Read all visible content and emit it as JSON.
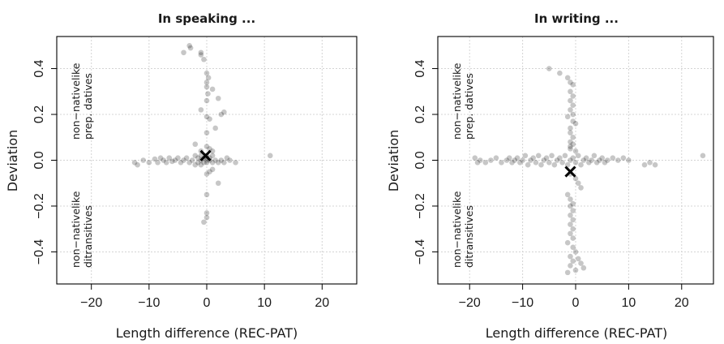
{
  "chart_data": [
    {
      "type": "scatter",
      "title": "In speaking ...",
      "xlabel": "Length difference (REC-PAT)",
      "ylabel": "Deviation",
      "xlim": [
        -26,
        26
      ],
      "ylim": [
        -0.54,
        0.54
      ],
      "xticks": [
        -20,
        -10,
        0,
        10,
        20
      ],
      "yticks": [
        -0.4,
        -0.2,
        0.0,
        0.2,
        0.4
      ],
      "x_tick_labels": [
        "−20",
        "−10",
        "0",
        "10",
        "20"
      ],
      "y_tick_labels": [
        "−0.4",
        "−0.2",
        "0.0",
        "0.2",
        "0.4"
      ],
      "grid": true,
      "annotations": {
        "upper": [
          "non−nativelike",
          "prep. datives"
        ],
        "lower": [
          "non−nativelike",
          "ditransitives"
        ]
      },
      "mean_marker": {
        "x": -0.2,
        "y": 0.02
      },
      "points": [
        [
          -12.5,
          -0.01
        ],
        [
          -12,
          -0.02
        ],
        [
          -11,
          0.0
        ],
        [
          -10,
          -0.01
        ],
        [
          -9,
          0.005
        ],
        [
          -8.5,
          -0.01
        ],
        [
          -8,
          0.01
        ],
        [
          -7.5,
          0.0
        ],
        [
          -7,
          -0.01
        ],
        [
          -6.5,
          0.01
        ],
        [
          -6,
          -0.005
        ],
        [
          -5.5,
          0.0
        ],
        [
          -5,
          0.01
        ],
        [
          -4.5,
          -0.01
        ],
        [
          -4,
          0.0
        ],
        [
          -3.5,
          0.01
        ],
        [
          -3,
          -0.01
        ],
        [
          -2.5,
          0.0
        ],
        [
          -2,
          0.02
        ],
        [
          -2,
          -0.02
        ],
        [
          -1.5,
          0.01
        ],
        [
          -1.5,
          -0.01
        ],
        [
          -1,
          0.0
        ],
        [
          -1,
          0.02
        ],
        [
          -1,
          -0.02
        ],
        [
          -0.5,
          0.01
        ],
        [
          -0.5,
          -0.01
        ],
        [
          0,
          0.0
        ],
        [
          0,
          0.01
        ],
        [
          0,
          -0.01
        ],
        [
          0,
          0.02
        ],
        [
          0.5,
          0.0
        ],
        [
          0.5,
          0.01
        ],
        [
          1,
          -0.01
        ],
        [
          1,
          0.02
        ],
        [
          1.5,
          0.0
        ],
        [
          2,
          -0.01
        ],
        [
          2.5,
          0.0
        ],
        [
          3,
          -0.01
        ],
        [
          3.5,
          0.01
        ],
        [
          4,
          0.0
        ],
        [
          5,
          -0.01
        ],
        [
          11,
          0.02
        ],
        [
          -3,
          0.5
        ],
        [
          -2.8,
          0.49
        ],
        [
          -4,
          0.47
        ],
        [
          -1,
          0.47
        ],
        [
          -1,
          0.46
        ],
        [
          -0.5,
          0.44
        ],
        [
          0,
          0.38
        ],
        [
          0.3,
          0.36
        ],
        [
          0,
          0.34
        ],
        [
          0,
          0.32
        ],
        [
          1,
          0.31
        ],
        [
          0.2,
          0.29
        ],
        [
          2,
          0.27
        ],
        [
          0,
          0.26
        ],
        [
          -1,
          0.22
        ],
        [
          3,
          0.21
        ],
        [
          2.5,
          0.2
        ],
        [
          0,
          0.19
        ],
        [
          0.5,
          0.18
        ],
        [
          1.5,
          0.14
        ],
        [
          0,
          0.12
        ],
        [
          -2,
          0.07
        ],
        [
          0,
          0.06
        ],
        [
          0.5,
          0.05
        ],
        [
          -1,
          0.04
        ],
        [
          1,
          0.04
        ],
        [
          0,
          -0.06
        ],
        [
          0.5,
          -0.05
        ],
        [
          1,
          -0.04
        ],
        [
          2,
          -0.1
        ],
        [
          0,
          -0.15
        ],
        [
          0,
          -0.23
        ],
        [
          0,
          -0.25
        ],
        [
          -0.5,
          -0.27
        ]
      ]
    },
    {
      "type": "scatter",
      "title": "In writing ...",
      "xlabel": "Length difference (REC-PAT)",
      "ylabel": "Deviation",
      "xlim": [
        -26,
        26
      ],
      "ylim": [
        -0.54,
        0.54
      ],
      "xticks": [
        -20,
        -10,
        0,
        10,
        20
      ],
      "yticks": [
        -0.4,
        -0.2,
        0.0,
        0.2,
        0.4
      ],
      "x_tick_labels": [
        "−20",
        "−10",
        "0",
        "10",
        "20"
      ],
      "y_tick_labels": [
        "−0.4",
        "−0.2",
        "0.0",
        "0.2",
        "0.4"
      ],
      "grid": true,
      "annotations": {
        "upper": [
          "non−nativelike",
          "prep. datives"
        ],
        "lower": [
          "non−nativelike",
          "ditransitives"
        ]
      },
      "mean_marker": {
        "x": -1,
        "y": -0.05
      },
      "points": [
        [
          -19,
          0.01
        ],
        [
          -18.5,
          -0.01
        ],
        [
          -18,
          0.0
        ],
        [
          -17,
          -0.01
        ],
        [
          -16,
          0.0
        ],
        [
          -15,
          0.01
        ],
        [
          -14,
          -0.01
        ],
        [
          -13,
          0.0
        ],
        [
          -12.5,
          0.01
        ],
        [
          -12,
          -0.01
        ],
        [
          -11.5,
          0.0
        ],
        [
          -11,
          0.01
        ],
        [
          -10.5,
          -0.01
        ],
        [
          -10,
          0.0
        ],
        [
          -9.5,
          0.02
        ],
        [
          -9,
          -0.02
        ],
        [
          -8.5,
          0.0
        ],
        [
          -8,
          0.01
        ],
        [
          -7.5,
          -0.01
        ],
        [
          -7,
          0.02
        ],
        [
          -6.5,
          -0.02
        ],
        [
          -6,
          0.0
        ],
        [
          -5.5,
          0.01
        ],
        [
          -5,
          -0.01
        ],
        [
          -4.5,
          0.02
        ],
        [
          -4,
          -0.02
        ],
        [
          -3.5,
          0.0
        ],
        [
          -3,
          0.01
        ],
        [
          -2.5,
          -0.01
        ],
        [
          -2,
          0.02
        ],
        [
          -1.5,
          -0.02
        ],
        [
          -1,
          0.0
        ],
        [
          -0.5,
          0.01
        ],
        [
          0,
          -0.01
        ],
        [
          0.5,
          0.02
        ],
        [
          1,
          -0.02
        ],
        [
          1.5,
          0.0
        ],
        [
          2,
          0.01
        ],
        [
          2.5,
          -0.01
        ],
        [
          3,
          0.0
        ],
        [
          3.5,
          0.02
        ],
        [
          4,
          -0.01
        ],
        [
          4.5,
          0.0
        ],
        [
          5,
          0.01
        ],
        [
          5.5,
          -0.01
        ],
        [
          6,
          0.0
        ],
        [
          7,
          0.01
        ],
        [
          8,
          0.0
        ],
        [
          9,
          0.01
        ],
        [
          10,
          0.0
        ],
        [
          13,
          -0.02
        ],
        [
          14,
          -0.01
        ],
        [
          15,
          -0.02
        ],
        [
          24,
          0.02
        ],
        [
          -5,
          0.4
        ],
        [
          -3,
          0.38
        ],
        [
          -1.5,
          0.36
        ],
        [
          -1,
          0.34
        ],
        [
          -0.5,
          0.33
        ],
        [
          -1,
          0.3
        ],
        [
          -0.5,
          0.28
        ],
        [
          -1,
          0.26
        ],
        [
          -0.5,
          0.24
        ],
        [
          -1,
          0.22
        ],
        [
          -0.5,
          0.2
        ],
        [
          -1.5,
          0.19
        ],
        [
          -0.5,
          0.17
        ],
        [
          0,
          0.16
        ],
        [
          -1,
          0.14
        ],
        [
          -1,
          0.12
        ],
        [
          -0.5,
          0.1
        ],
        [
          -1,
          0.08
        ],
        [
          -0.5,
          0.07
        ],
        [
          -1,
          0.06
        ],
        [
          -1,
          0.05
        ],
        [
          0,
          0.04
        ],
        [
          -1,
          -0.06
        ],
        [
          0,
          -0.08
        ],
        [
          0.5,
          -0.1
        ],
        [
          1,
          -0.12
        ],
        [
          -1.5,
          -0.15
        ],
        [
          -1,
          -0.17
        ],
        [
          -0.5,
          -0.19
        ],
        [
          -1,
          -0.2
        ],
        [
          -0.5,
          -0.22
        ],
        [
          -1,
          -0.24
        ],
        [
          -0.5,
          -0.26
        ],
        [
          -1,
          -0.28
        ],
        [
          -0.5,
          -0.3
        ],
        [
          -1,
          -0.32
        ],
        [
          -0.5,
          -0.34
        ],
        [
          -1.5,
          -0.36
        ],
        [
          -0.5,
          -0.38
        ],
        [
          0,
          -0.4
        ],
        [
          -1,
          -0.42
        ],
        [
          -0.5,
          -0.44
        ],
        [
          -1,
          -0.46
        ],
        [
          0,
          -0.48
        ],
        [
          0.5,
          -0.43
        ],
        [
          1,
          -0.45
        ],
        [
          1.5,
          -0.47
        ],
        [
          -1.5,
          -0.49
        ]
      ]
    }
  ]
}
